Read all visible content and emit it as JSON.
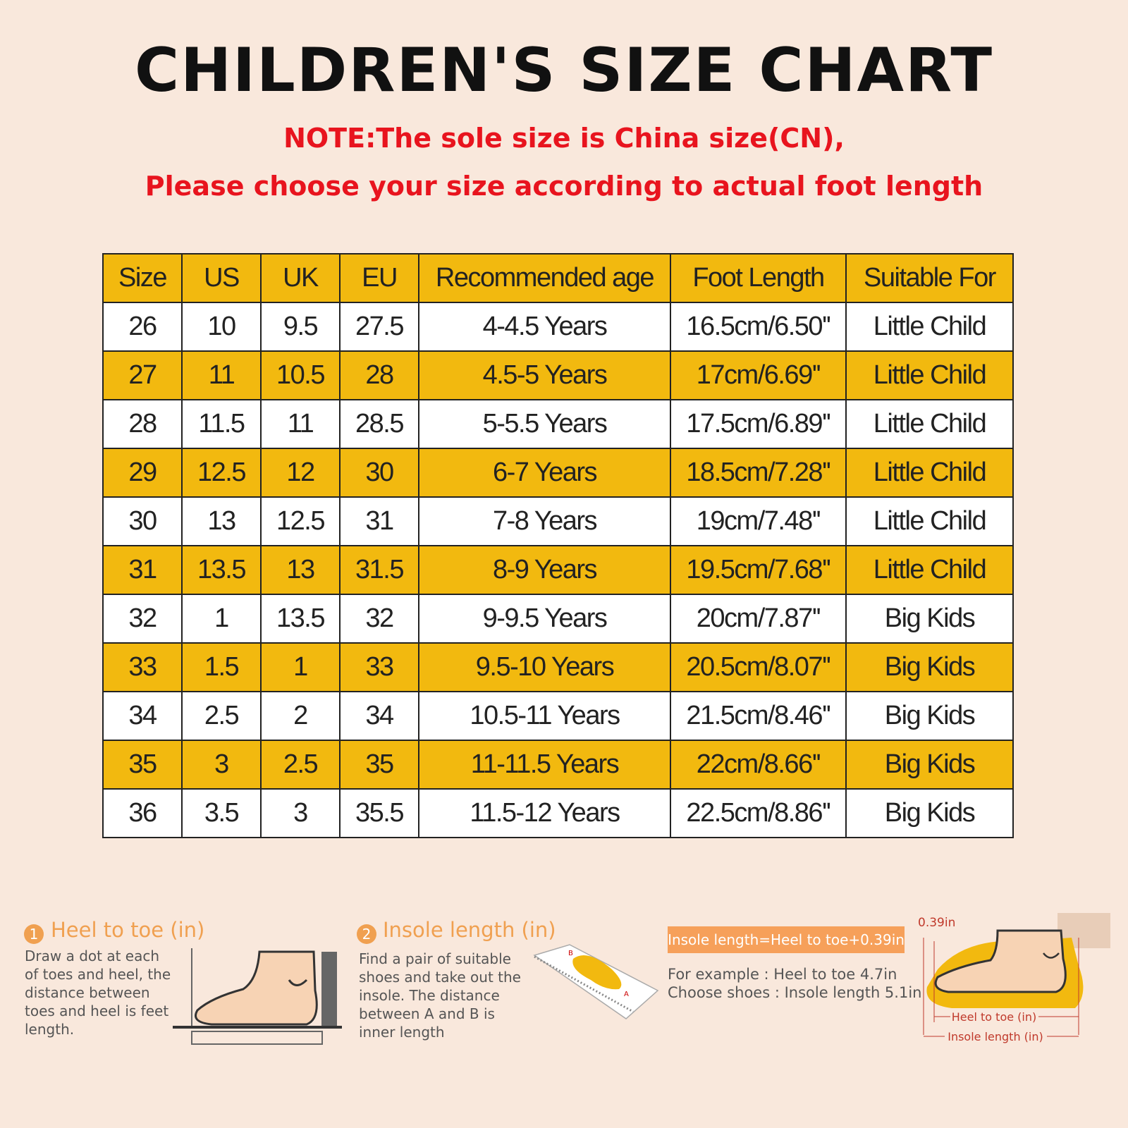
{
  "header": {
    "title": "CHILDREN'S SIZE CHART",
    "notes": [
      "NOTE:The sole size is China size(CN),",
      "Please choose your size according to actual foot length"
    ]
  },
  "table": {
    "columns": [
      "Size",
      "US",
      "UK",
      "EU",
      "Recommended age",
      "Foot Length",
      "Suitable For"
    ],
    "rows": [
      [
        "26",
        "10",
        "9.5",
        "27.5",
        "4-4.5 Years",
        "16.5cm/6.50''",
        "Little Child"
      ],
      [
        "27",
        "11",
        "10.5",
        "28",
        "4.5-5 Years",
        "17cm/6.69''",
        "Little Child"
      ],
      [
        "28",
        "11.5",
        "11",
        "28.5",
        "5-5.5 Years",
        "17.5cm/6.89''",
        "Little Child"
      ],
      [
        "29",
        "12.5",
        "12",
        "30",
        "6-7 Years",
        "18.5cm/7.28''",
        "Little Child"
      ],
      [
        "30",
        "13",
        "12.5",
        "31",
        "7-8 Years",
        "19cm/7.48''",
        "Little Child"
      ],
      [
        "31",
        "13.5",
        "13",
        "31.5",
        "8-9 Years",
        "19.5cm/7.68''",
        "Little Child"
      ],
      [
        "32",
        "1",
        "13.5",
        "32",
        "9-9.5 Years",
        "20cm/7.87''",
        "Big Kids"
      ],
      [
        "33",
        "1.5",
        "1",
        "33",
        "9.5-10 Years",
        "20.5cm/8.07''",
        "Big Kids"
      ],
      [
        "34",
        "2.5",
        "2",
        "34",
        "10.5-11 Years",
        "21.5cm/8.46''",
        "Big Kids"
      ],
      [
        "35",
        "3",
        "2.5",
        "35",
        "11-11.5 Years",
        "22cm/8.66''",
        "Big Kids"
      ],
      [
        "36",
        "3.5",
        "3",
        "35.5",
        "11.5-12 Years",
        "22.5cm/8.86''",
        "Big Kids"
      ]
    ]
  },
  "guide": {
    "steps": [
      {
        "number": "1",
        "title": "Heel to toe (in)",
        "text": "Draw a dot at each of toes and heel, the distance between toes and heel is feet length."
      },
      {
        "number": "2",
        "title": "Insole length (in)",
        "text": "Find a pair of suitable shoes and take out the insole. The distance between A and B is inner length",
        "marks": [
          "B",
          "A"
        ]
      }
    ],
    "formula": "Insole length=Heel to toe+0.39in",
    "example": [
      "For example : Heel to toe  4.7in",
      "Choose shoes : Insole length 5.1in"
    ],
    "diagram": {
      "allowance": "0.39in",
      "heel_to_toe": "Heel to toe (in)",
      "insole_length": "Insole length (in)"
    }
  }
}
